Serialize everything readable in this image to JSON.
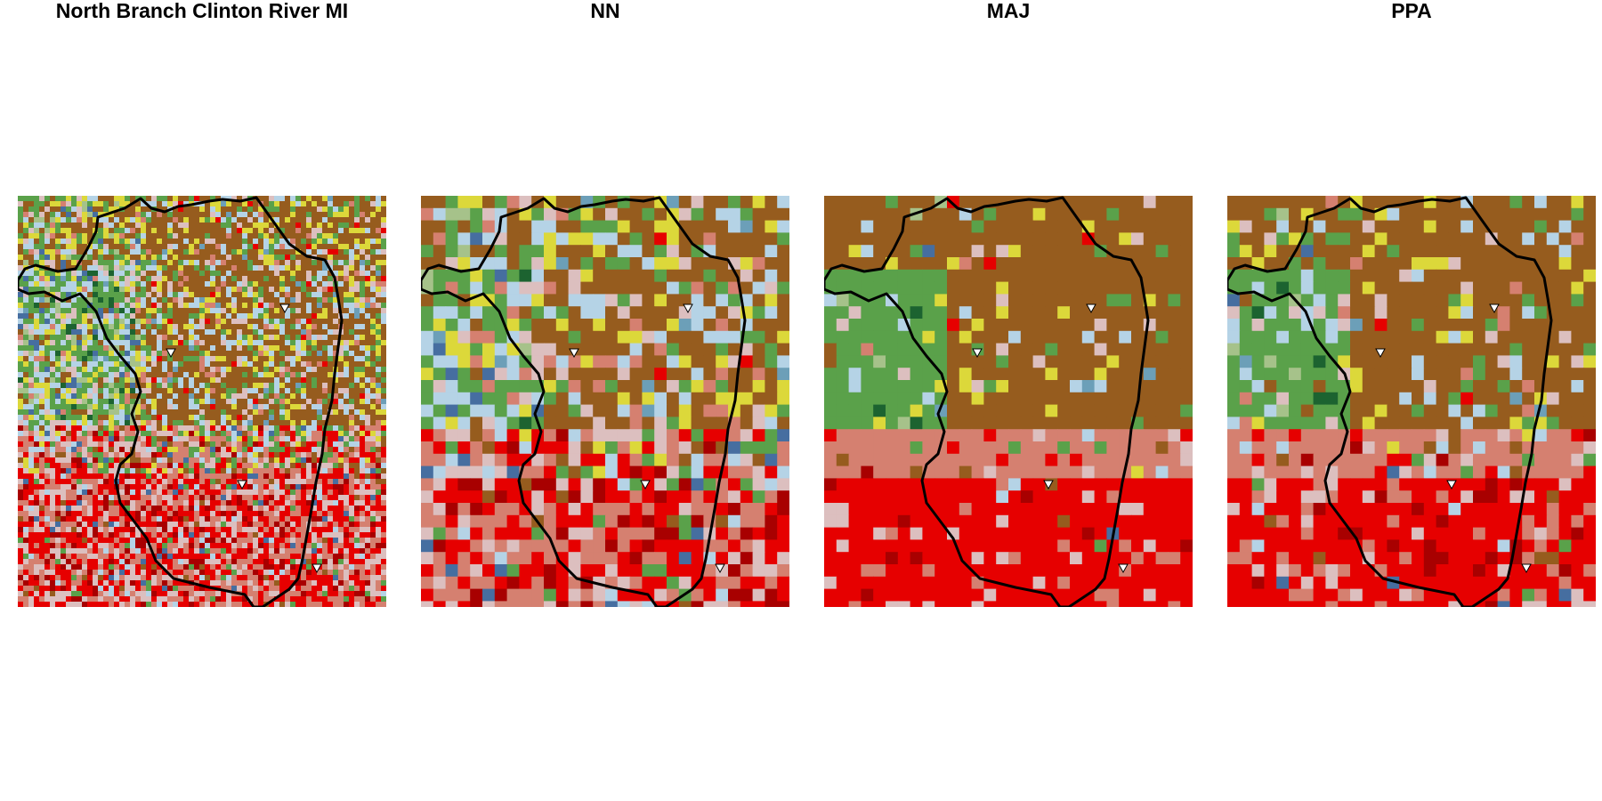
{
  "panels": [
    {
      "title": "North Branch Clinton River MI",
      "method": "fine",
      "seed": 11
    },
    {
      "title": "NN",
      "method": "nn",
      "seed": 23
    },
    {
      "title": "MAJ",
      "method": "maj",
      "seed": 37
    },
    {
      "title": "PPA",
      "method": "ppa",
      "seed": 51
    }
  ],
  "legend_colors": {
    "open_water": "#466ea0",
    "developed_open": "#dcbfbf",
    "developed_low": "#d58070",
    "developed_medium": "#e60000",
    "developed_high": "#a80000",
    "deciduous_forest": "#5aa14a",
    "evergreen_forest": "#1c6330",
    "mixed_forest": "#a6c28a",
    "hay_pasture": "#dcd83a",
    "cultivated_crops": "#965c1e",
    "woody_wetlands": "#b5d3e6",
    "herbaceous_wetlands": "#6c9fb8",
    "barren": "#ede7c8"
  },
  "markers": {
    "count": 4,
    "symbol": "inverted-triangle",
    "fill": "#ffffff",
    "stroke": "#000000"
  }
}
